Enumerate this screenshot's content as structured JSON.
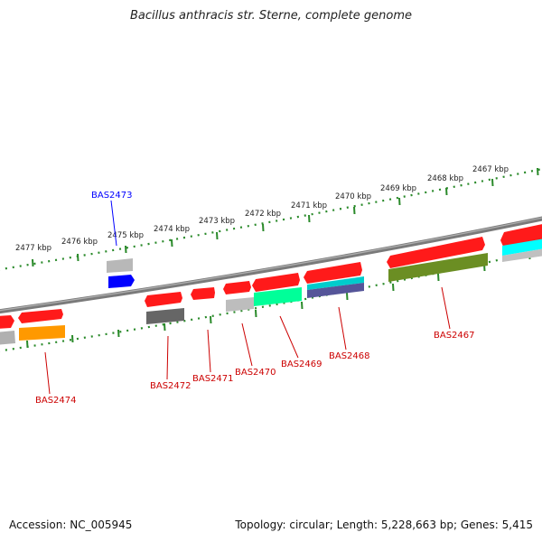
{
  "title": "Bacillus anthracis str. Sterne, complete genome",
  "footer": {
    "accession": "Accession: NC_005945",
    "summary": "Topology: circular; Length: 5,228,663 bp; Genes: 5,415"
  },
  "scale": {
    "unit": "kbp",
    "ticks": [
      "2477 kbp",
      "2476 kbp",
      "2475 kbp",
      "2474 kbp",
      "2473 kbp",
      "2472 kbp",
      "2471 kbp",
      "2470 kbp",
      "2469 kbp",
      "2468 kbp",
      "2467 kbp"
    ]
  },
  "genes": [
    {
      "name": "BAS2473",
      "color": "#0000ff"
    },
    {
      "name": "BAS2474",
      "color": "#cc0000"
    },
    {
      "name": "BAS2472",
      "color": "#cc0000"
    },
    {
      "name": "BAS2471",
      "color": "#cc0000"
    },
    {
      "name": "BAS2470",
      "color": "#cc0000"
    },
    {
      "name": "BAS2469",
      "color": "#cc0000"
    },
    {
      "name": "BAS2468",
      "color": "#cc0000"
    },
    {
      "name": "BAS2467",
      "color": "#cc0000"
    }
  ],
  "colors": {
    "backbone": "#808080",
    "ticks": "#2a8a2a",
    "gene_red": "#ff0000",
    "orange": "#ff9900",
    "green": "#00ff99",
    "olive": "#6b8e23",
    "cyan": "#00ffff",
    "blue": "#0000ff"
  }
}
